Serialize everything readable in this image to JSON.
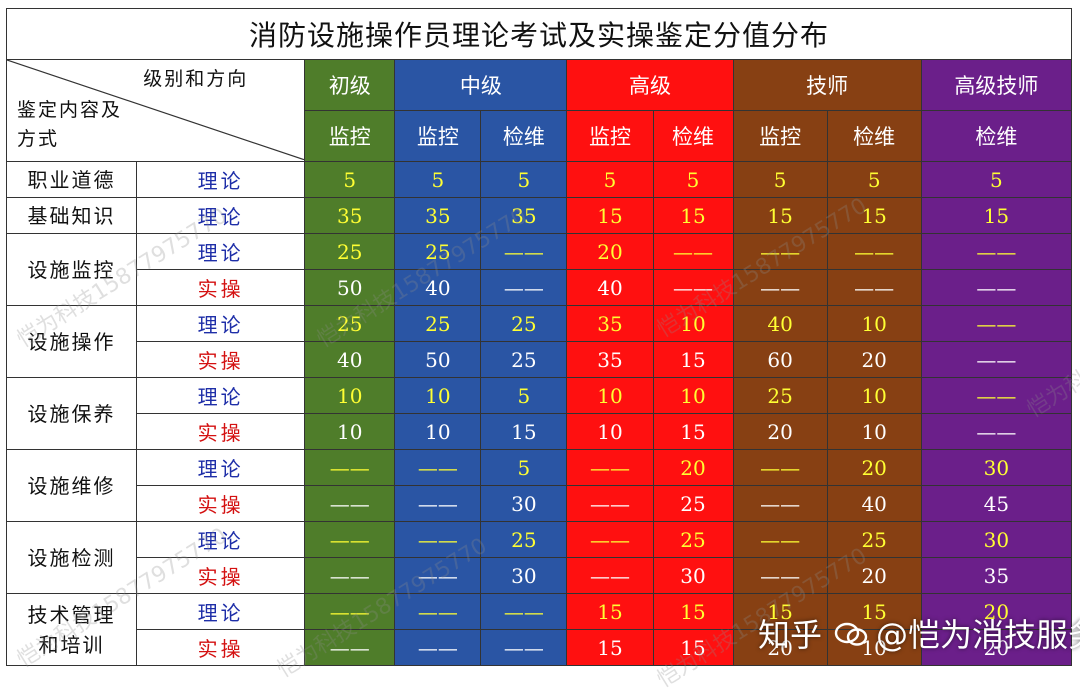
{
  "title": "消防设施操作员理论考试及实操鉴定分值分布",
  "corner": {
    "top_right": "级别和方向",
    "bottom_left": "鉴定内容及方式"
  },
  "levels": [
    {
      "name": "初级",
      "color": "#4f7d2a",
      "directions": [
        "监控"
      ]
    },
    {
      "name": "中级",
      "color": "#2a55a4",
      "directions": [
        "监控",
        "检维"
      ]
    },
    {
      "name": "高级",
      "color": "#ff1010",
      "directions": [
        "监控",
        "检维"
      ]
    },
    {
      "name": "技师",
      "color": "#874013",
      "directions": [
        "监控",
        "检维"
      ]
    },
    {
      "name": "高级技师",
      "color": "#6b1f8a",
      "directions": [
        "检维"
      ]
    }
  ],
  "rows": [
    {
      "category": "职业道德",
      "mode": "理论",
      "values": [
        "5",
        "5",
        "5",
        "5",
        "5",
        "5",
        "5",
        "5"
      ]
    },
    {
      "category": "基础知识",
      "mode": "理论",
      "values": [
        "35",
        "35",
        "35",
        "15",
        "15",
        "15",
        "15",
        "15"
      ]
    },
    {
      "category": "设施监控",
      "mode": "理论",
      "values": [
        "25",
        "25",
        "——",
        "20",
        "——",
        "——",
        "——",
        "——"
      ]
    },
    {
      "category": "设施监控",
      "mode": "实操",
      "values": [
        "50",
        "40",
        "——",
        "40",
        "——",
        "——",
        "——",
        "——"
      ]
    },
    {
      "category": "设施操作",
      "mode": "理论",
      "values": [
        "25",
        "25",
        "25",
        "35",
        "10",
        "40",
        "10",
        "——"
      ]
    },
    {
      "category": "设施操作",
      "mode": "实操",
      "values": [
        "40",
        "50",
        "25",
        "35",
        "15",
        "60",
        "20",
        "——"
      ]
    },
    {
      "category": "设施保养",
      "mode": "理论",
      "values": [
        "10",
        "10",
        "5",
        "10",
        "10",
        "25",
        "10",
        "——"
      ]
    },
    {
      "category": "设施保养",
      "mode": "实操",
      "values": [
        "10",
        "10",
        "15",
        "10",
        "15",
        "20",
        "10",
        "——"
      ]
    },
    {
      "category": "设施维修",
      "mode": "理论",
      "values": [
        "——",
        "——",
        "5",
        "——",
        "20",
        "——",
        "20",
        "30"
      ]
    },
    {
      "category": "设施维修",
      "mode": "实操",
      "values": [
        "——",
        "——",
        "30",
        "——",
        "25",
        "——",
        "40",
        "45"
      ]
    },
    {
      "category": "设施检测",
      "mode": "理论",
      "values": [
        "——",
        "——",
        "25",
        "——",
        "25",
        "——",
        "25",
        "30"
      ]
    },
    {
      "category": "设施检测",
      "mode": "实操",
      "values": [
        "——",
        "——",
        "30",
        "——",
        "30",
        "——",
        "20",
        "35"
      ]
    },
    {
      "category": "技术管理和培训",
      "mode": "理论",
      "values": [
        "——",
        "——",
        "——",
        "15",
        "15",
        "15",
        "15",
        "20"
      ]
    },
    {
      "category": "技术管理和培训",
      "mode": "实操",
      "values": [
        "——",
        "——",
        "——",
        "15",
        "15",
        "20",
        "10",
        "20"
      ]
    }
  ],
  "categories": [
    {
      "name": "职业道德",
      "rows": 1
    },
    {
      "name": "基础知识",
      "rows": 1
    },
    {
      "name": "设施监控",
      "rows": 2
    },
    {
      "name": "设施操作",
      "rows": 2
    },
    {
      "name": "设施保养",
      "rows": 2
    },
    {
      "name": "设施维修",
      "rows": 2
    },
    {
      "name": "设施检测",
      "rows": 2
    },
    {
      "name": "技术管理和培训",
      "rows": 2
    }
  ],
  "watermark": "恺为科技15877975770",
  "brand": {
    "site": "知乎",
    "handle": "@恺为消技服务"
  }
}
